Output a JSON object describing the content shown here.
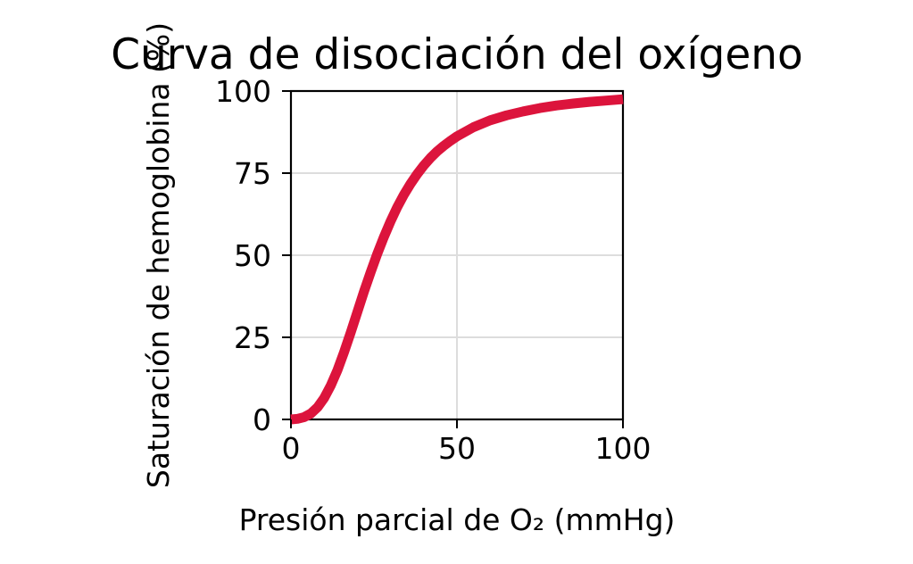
{
  "chart_data": {
    "type": "line",
    "title": "Curva de disociación del oxígeno",
    "xlabel": "Presión parcial de O₂ (mmHg)",
    "ylabel": "Saturación de hemoglobina (%)",
    "xlim": [
      0,
      100
    ],
    "ylim": [
      0,
      100
    ],
    "xticks": [
      0,
      50,
      100
    ],
    "yticks": [
      0,
      25,
      50,
      75,
      100
    ],
    "grid": true,
    "series": [
      {
        "color": "#dc143c",
        "x": [
          0,
          2,
          4,
          6,
          8,
          10,
          12,
          14,
          16,
          18,
          20,
          22,
          24,
          26,
          28,
          30,
          32,
          34,
          36,
          38,
          40,
          42,
          44,
          46,
          48,
          50,
          55,
          60,
          65,
          70,
          75,
          80,
          85,
          90,
          95,
          100
        ],
        "y": [
          0,
          0.2,
          0.7,
          1.8,
          3.7,
          6.5,
          10.3,
          15.0,
          20.5,
          26.5,
          32.7,
          38.9,
          44.8,
          50.4,
          55.6,
          60.3,
          64.6,
          68.4,
          71.7,
          74.7,
          77.3,
          79.6,
          81.6,
          83.3,
          84.8,
          86.2,
          89.0,
          91.1,
          92.6,
          93.8,
          94.8,
          95.6,
          96.2,
          96.7,
          97.1,
          97.5
        ]
      }
    ]
  }
}
